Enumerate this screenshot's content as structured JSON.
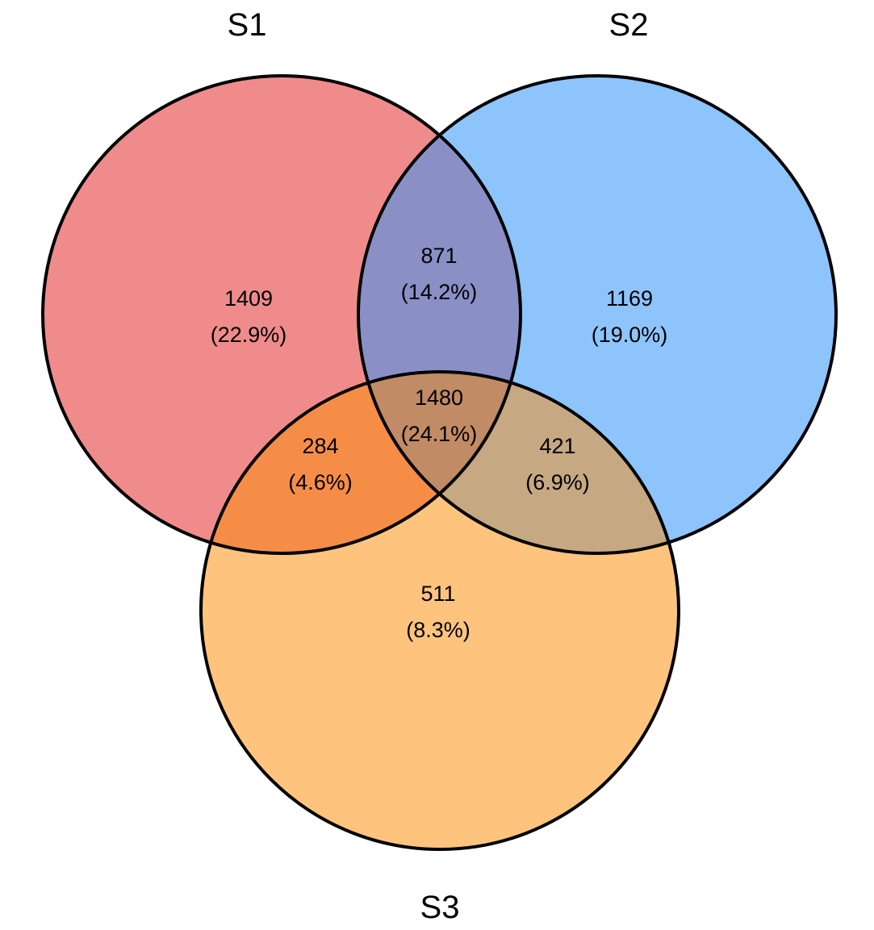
{
  "sets": [
    {
      "id": "s1",
      "label": "S1",
      "color": "#F08B8B"
    },
    {
      "id": "s2",
      "label": "S2",
      "color": "#8EC4FC"
    },
    {
      "id": "s3",
      "label": "S3",
      "color": "#FEC47E"
    }
  ],
  "regions": {
    "s1_only": {
      "count": "1409",
      "percent": "(22.9%)",
      "color": "#F08B8B"
    },
    "s2_only": {
      "count": "1169",
      "percent": "(19.0%)",
      "color": "#8EC4FC"
    },
    "s3_only": {
      "count": "511",
      "percent": "(8.3%)",
      "color": "#FEC47E"
    },
    "s1_s2": {
      "count": "871",
      "percent": "(14.2%)",
      "color": "#8A90C6"
    },
    "s1_s3": {
      "count": "284",
      "percent": "(4.6%)",
      "color": "#F68D47"
    },
    "s2_s3": {
      "count": "421",
      "percent": "(6.9%)",
      "color": "#C6A882"
    },
    "s1_s2_s3": {
      "count": "1480",
      "percent": "(24.1%)",
      "color": "#C18B66"
    }
  }
}
